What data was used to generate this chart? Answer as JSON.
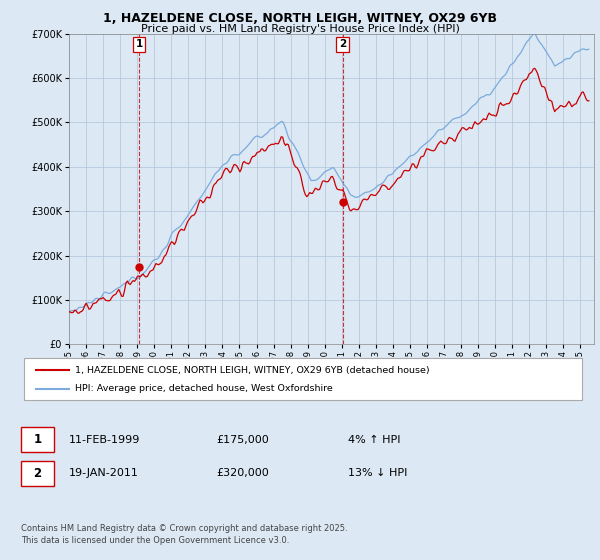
{
  "title_line1": "1, HAZELDENE CLOSE, NORTH LEIGH, WITNEY, OX29 6YB",
  "title_line2": "Price paid vs. HM Land Registry's House Price Index (HPI)",
  "sale1_date": "11-FEB-1999",
  "sale1_price": 175000,
  "sale1_label": "4% ↑ HPI",
  "sale2_date": "19-JAN-2011",
  "sale2_price": 320000,
  "sale2_label": "13% ↓ HPI",
  "legend_label1": "1, HAZELDENE CLOSE, NORTH LEIGH, WITNEY, OX29 6YB (detached house)",
  "legend_label2": "HPI: Average price, detached house, West Oxfordshire",
  "footer": "Contains HM Land Registry data © Crown copyright and database right 2025.\nThis data is licensed under the Open Government Licence v3.0.",
  "price_color": "#cc0000",
  "hpi_color": "#7aabdc",
  "bg_color": "#dce8f4",
  "plot_bg": "#dce8f4",
  "vline_color": "#cc0000",
  "ylim_max": 700000,
  "ylim_min": 0,
  "sale1_x": 1999.11,
  "sale2_x": 2011.05
}
